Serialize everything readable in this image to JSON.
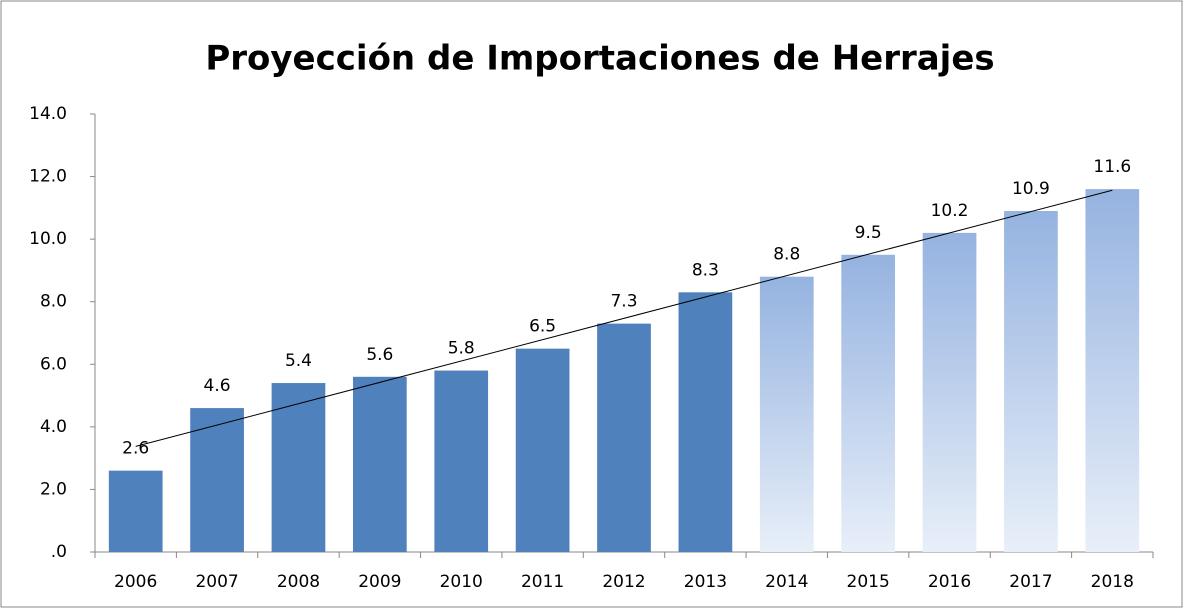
{
  "chart_data": {
    "type": "bar",
    "title": "Proyección de Importaciones de Herrajes",
    "categories": [
      "2006",
      "2007",
      "2008",
      "2009",
      "2010",
      "2011",
      "2012",
      "2013",
      "2014",
      "2015",
      "2016",
      "2017",
      "2018"
    ],
    "values": [
      2.6,
      4.6,
      5.4,
      5.6,
      5.8,
      6.5,
      7.3,
      8.3,
      8.8,
      9.5,
      10.2,
      10.9,
      11.6
    ],
    "color": "#4f81bd",
    "bar_fill": [
      "solid",
      "solid",
      "solid",
      "solid",
      "solid",
      "solid",
      "solid",
      "solid",
      "gradient",
      "gradient",
      "gradient",
      "gradient",
      "gradient"
    ],
    "ylim": [
      0,
      14
    ],
    "yticks": [
      {
        "value": 0,
        "label": ".0"
      },
      {
        "value": 2,
        "label": "2.0"
      },
      {
        "value": 4,
        "label": "4.0"
      },
      {
        "value": 6,
        "label": "6.0"
      },
      {
        "value": 8,
        "label": "8.0"
      },
      {
        "value": 10,
        "label": "10.0"
      },
      {
        "value": 12,
        "label": "12.0"
      },
      {
        "value": 14,
        "label": "14.0"
      }
    ],
    "grid": false,
    "trendline": true
  }
}
